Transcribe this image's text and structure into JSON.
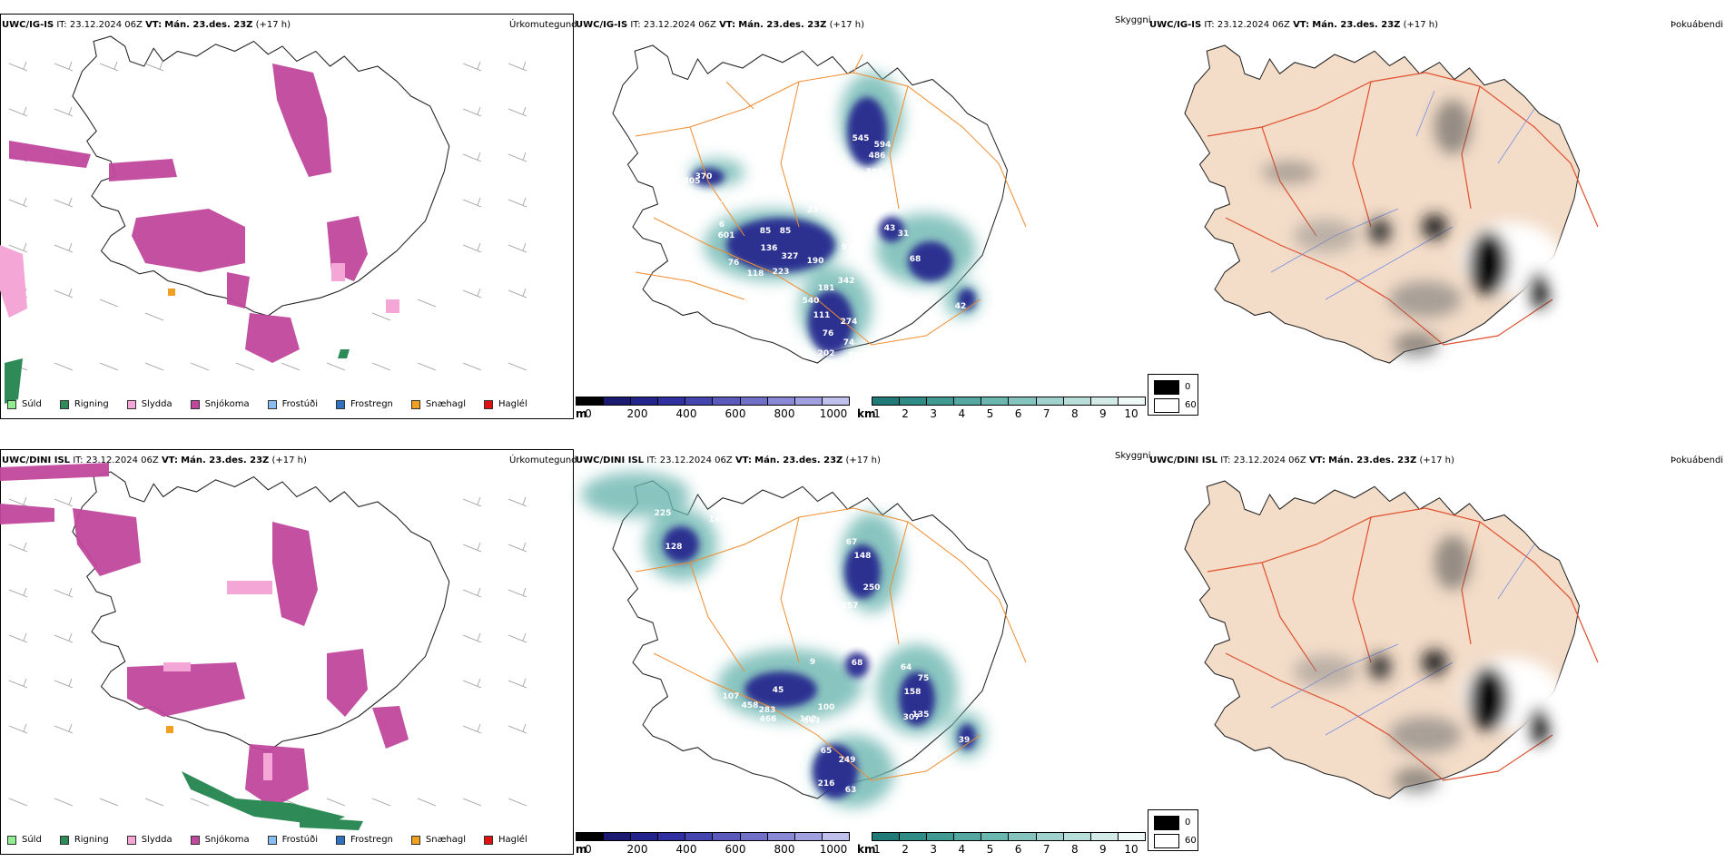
{
  "rows": [
    {
      "model": "UWC/IG-IS",
      "it_label": "IT:",
      "it_value": "23.12.2024 06Z",
      "vt_label": "VT:",
      "vt_value": "Mán. 23.des. 23Z",
      "lead": "(+17 h)",
      "precip_title": "Úrkomutegund",
      "cloud_title": "Skyggni",
      "fog_title": "Þokuábendi"
    },
    {
      "model": "UWC/DINI ISL",
      "it_label": "IT:",
      "it_value": "23.12.2024 06Z",
      "vt_label": "VT:",
      "vt_value": "Mán. 23.des. 23Z",
      "lead": "(+17 h)",
      "precip_title": "Úrkomutegund",
      "cloud_title": "Skyggni",
      "fog_title": "Þokuábendi"
    }
  ],
  "precip_legend": [
    {
      "label": "Súld",
      "color": "#90ee90"
    },
    {
      "label": "Rigning",
      "color": "#2e8b57"
    },
    {
      "label": "Slydda",
      "color": "#f4a6d7"
    },
    {
      "label": "Snjókoma",
      "color": "#c0479c"
    },
    {
      "label": "Frostúði",
      "color": "#87bdf0"
    },
    {
      "label": "Frostregn",
      "color": "#3070c0"
    },
    {
      "label": "Snæhagl",
      "color": "#f0a020"
    },
    {
      "label": "Haglél",
      "color": "#e01010"
    }
  ],
  "ceiling_scale": {
    "unit": "m",
    "ticks": [
      "0",
      "200",
      "400",
      "600",
      "800",
      "1000"
    ],
    "colors": [
      "#000000",
      "#1a1a70",
      "#23238c",
      "#3030a0",
      "#4545b0",
      "#5a5abc",
      "#7070c8",
      "#8888d4",
      "#a0a0e0",
      "#c0c0ec"
    ]
  },
  "visibility_scale": {
    "unit": "km",
    "ticks": [
      "1",
      "2",
      "3",
      "4",
      "5",
      "6",
      "7",
      "8",
      "9",
      "10"
    ],
    "colors": [
      "#1f7a78",
      "#2e8b86",
      "#3f9a94",
      "#55a8a2",
      "#6cb6b0",
      "#85c4be",
      "#9fd2cc",
      "#b8ded9",
      "#d2ebe7",
      "#eef8f6"
    ]
  },
  "fog_legend": [
    {
      "label": "0"
    },
    {
      "label": "60"
    }
  ],
  "ceiling_labels": [
    [
      "545",
      "594",
      "486",
      "399",
      "370",
      "305",
      "56",
      "6",
      "601",
      "85",
      "85",
      "23",
      "43",
      "97",
      "190",
      "327",
      "136",
      "76",
      "118",
      "223",
      "181",
      "342",
      "540",
      "31",
      "68",
      "111",
      "274",
      "76",
      "74",
      "202",
      "73",
      "42"
    ],
    [
      "225",
      "149",
      "128",
      "67",
      "148",
      "250",
      "257",
      "9",
      "68",
      "45",
      "64",
      "75",
      "107",
      "458",
      "283",
      "100",
      "158",
      "466",
      "102",
      "307",
      "863",
      "135",
      "39",
      "65",
      "249",
      "216",
      "63"
    ]
  ]
}
